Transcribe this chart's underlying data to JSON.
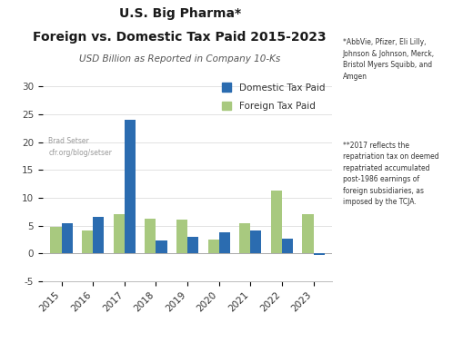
{
  "title_line1": "U.S. Big Pharma*",
  "title_line2": "Foreign vs. Domestic Tax Paid 2015-2023",
  "subtitle": "USD Billion as Reported in Company 10-Ks",
  "years": [
    2015,
    2016,
    2017,
    2018,
    2019,
    2020,
    2021,
    2022,
    2023
  ],
  "domestic": [
    5.5,
    6.5,
    24.0,
    2.3,
    3.0,
    3.8,
    4.2,
    2.6,
    -0.3
  ],
  "foreign": [
    4.8,
    4.2,
    7.0,
    6.3,
    6.1,
    2.5,
    5.4,
    11.3,
    7.0
  ],
  "domestic_color": "#2B6CB0",
  "foreign_color": "#A8C97F",
  "ylim": [
    -5,
    32
  ],
  "yticks": [
    -5,
    0,
    5,
    10,
    15,
    20,
    25,
    30
  ],
  "footnote1": "*AbbVie, Pfizer, Eli Lilly,\nJohnson & Johnson, Merck,\nBristol Myers Squibb, and\nAmgen",
  "footnote2": "**2017 reflects the\nrepatriation tax on deemed\nrepatriated accumulated\npost-1986 earnings of\nforeign subsidiaries, as\nimposed by the TCJA.",
  "watermark_line1": "Brad Setser",
  "watermark_line2": "cfr.org/blog/setser",
  "bar_width": 0.35,
  "legend_domestic": "Domestic Tax Paid",
  "legend_foreign": "Foreign Tax Paid",
  "bg_color": "#FFFFFF"
}
